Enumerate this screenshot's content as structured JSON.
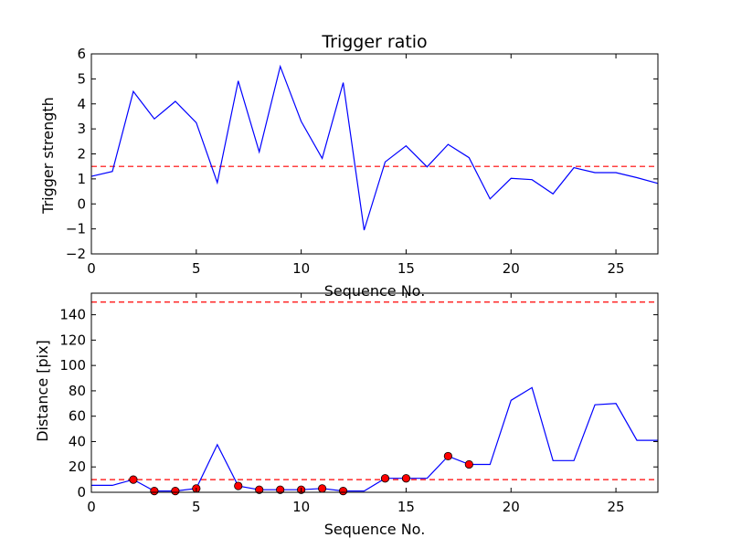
{
  "chart_data": [
    {
      "type": "line",
      "title": "Trigger ratio",
      "xlabel": "Sequence No.",
      "ylabel": "Trigger strength",
      "xlim": [
        0,
        27
      ],
      "ylim": [
        -2,
        6
      ],
      "xticks": [
        0,
        5,
        10,
        15,
        20,
        25
      ],
      "yticks": [
        -2,
        -1,
        0,
        1,
        2,
        3,
        4,
        5,
        6
      ],
      "grid": false,
      "series": [
        {
          "style": "line",
          "color": "#0000ff",
          "x": [
            0,
            1,
            2,
            3,
            4,
            5,
            6,
            7,
            8,
            9,
            10,
            11,
            12,
            13,
            14,
            15,
            16,
            17,
            18,
            19,
            20,
            21,
            22,
            23,
            24,
            25,
            26,
            27
          ],
          "y": [
            1.1,
            1.3,
            4.5,
            3.4,
            4.1,
            3.25,
            0.85,
            4.92,
            2.08,
            5.5,
            3.3,
            1.82,
            4.85,
            -1.05,
            1.68,
            2.32,
            1.48,
            2.38,
            1.85,
            0.2,
            1.02,
            0.97,
            0.4,
            1.45,
            1.25,
            1.25,
            1.05,
            0.82
          ]
        }
      ],
      "hlines": [
        {
          "y": 1.5,
          "color": "#ff0000",
          "style": "dashed"
        }
      ]
    },
    {
      "type": "line",
      "title": "",
      "xlabel": "Sequence No.",
      "ylabel": "Distance [pix]",
      "xlim": [
        0,
        27
      ],
      "ylim": [
        0,
        157
      ],
      "xticks": [
        0,
        5,
        10,
        15,
        20,
        25
      ],
      "yticks": [
        0,
        20,
        40,
        60,
        80,
        100,
        120,
        140
      ],
      "grid": false,
      "series": [
        {
          "style": "line",
          "color": "#0000ff",
          "x": [
            0,
            1,
            2,
            3,
            4,
            5,
            6,
            7,
            8,
            9,
            10,
            11,
            12,
            13,
            14,
            15,
            16,
            17,
            18,
            19,
            20,
            21,
            22,
            23,
            24,
            25,
            26,
            27
          ],
          "y": [
            5.5,
            5.5,
            10,
            1,
            1,
            3,
            37.5,
            5,
            2,
            2,
            2,
            3,
            1,
            1,
            11,
            11,
            11,
            28.5,
            22,
            22,
            72.5,
            82.5,
            25,
            25,
            69,
            70,
            41,
            41
          ]
        },
        {
          "style": "markers",
          "color": "#ff0000",
          "x": [
            2,
            3,
            4,
            5,
            7,
            8,
            9,
            10,
            11,
            12,
            14,
            15,
            17,
            18
          ],
          "y": [
            10,
            1,
            1,
            3,
            5,
            2,
            2,
            2,
            3,
            1,
            11,
            11,
            28.5,
            22
          ]
        }
      ],
      "hlines": [
        {
          "y": 150,
          "color": "#ff0000",
          "style": "dashed"
        },
        {
          "y": 10,
          "color": "#ff0000",
          "style": "dashed"
        }
      ]
    }
  ]
}
